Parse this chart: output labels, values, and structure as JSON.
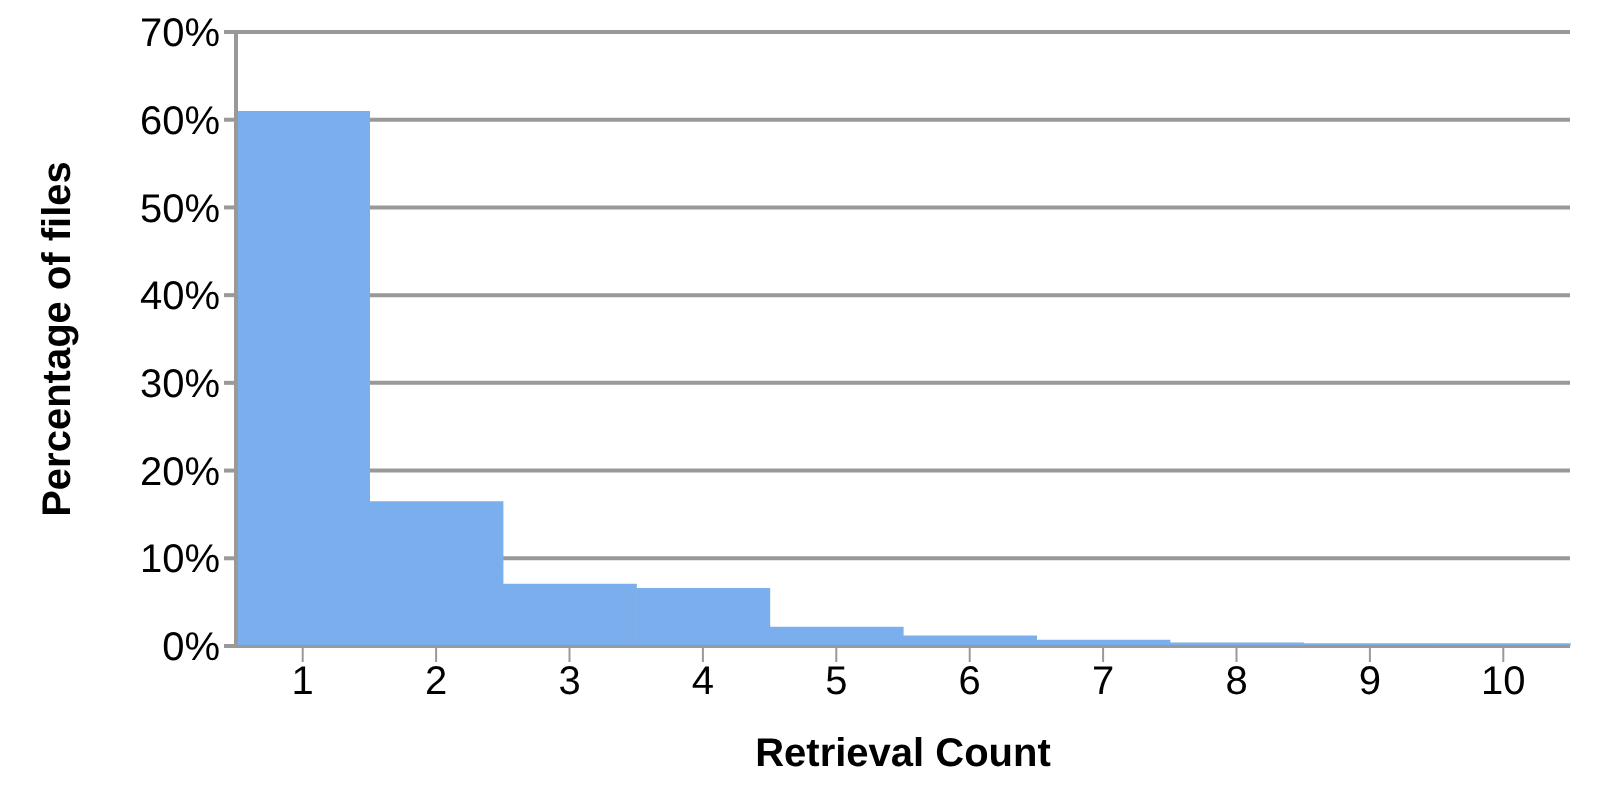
{
  "chart_data": {
    "type": "bar",
    "xlabel": "Retrieval Count",
    "ylabel": "Percentage of files",
    "categories": [
      "1",
      "2",
      "3",
      "4",
      "5",
      "6",
      "7",
      "8",
      "9",
      "10"
    ],
    "values": [
      61,
      16.5,
      7.1,
      6.6,
      2.2,
      1.2,
      0.7,
      0.4,
      0.3,
      0.3
    ],
    "color": "#7aaeec",
    "ylim": [
      0,
      70
    ],
    "yticks": [
      {
        "value": 0,
        "label": "0%"
      },
      {
        "value": 10,
        "label": "10%"
      },
      {
        "value": 20,
        "label": "20%"
      },
      {
        "value": 30,
        "label": "30%"
      },
      {
        "value": 40,
        "label": "40%"
      },
      {
        "value": 50,
        "label": "50%"
      },
      {
        "value": 60,
        "label": "60%"
      },
      {
        "value": 70,
        "label": "70%"
      }
    ],
    "grid": "y"
  }
}
